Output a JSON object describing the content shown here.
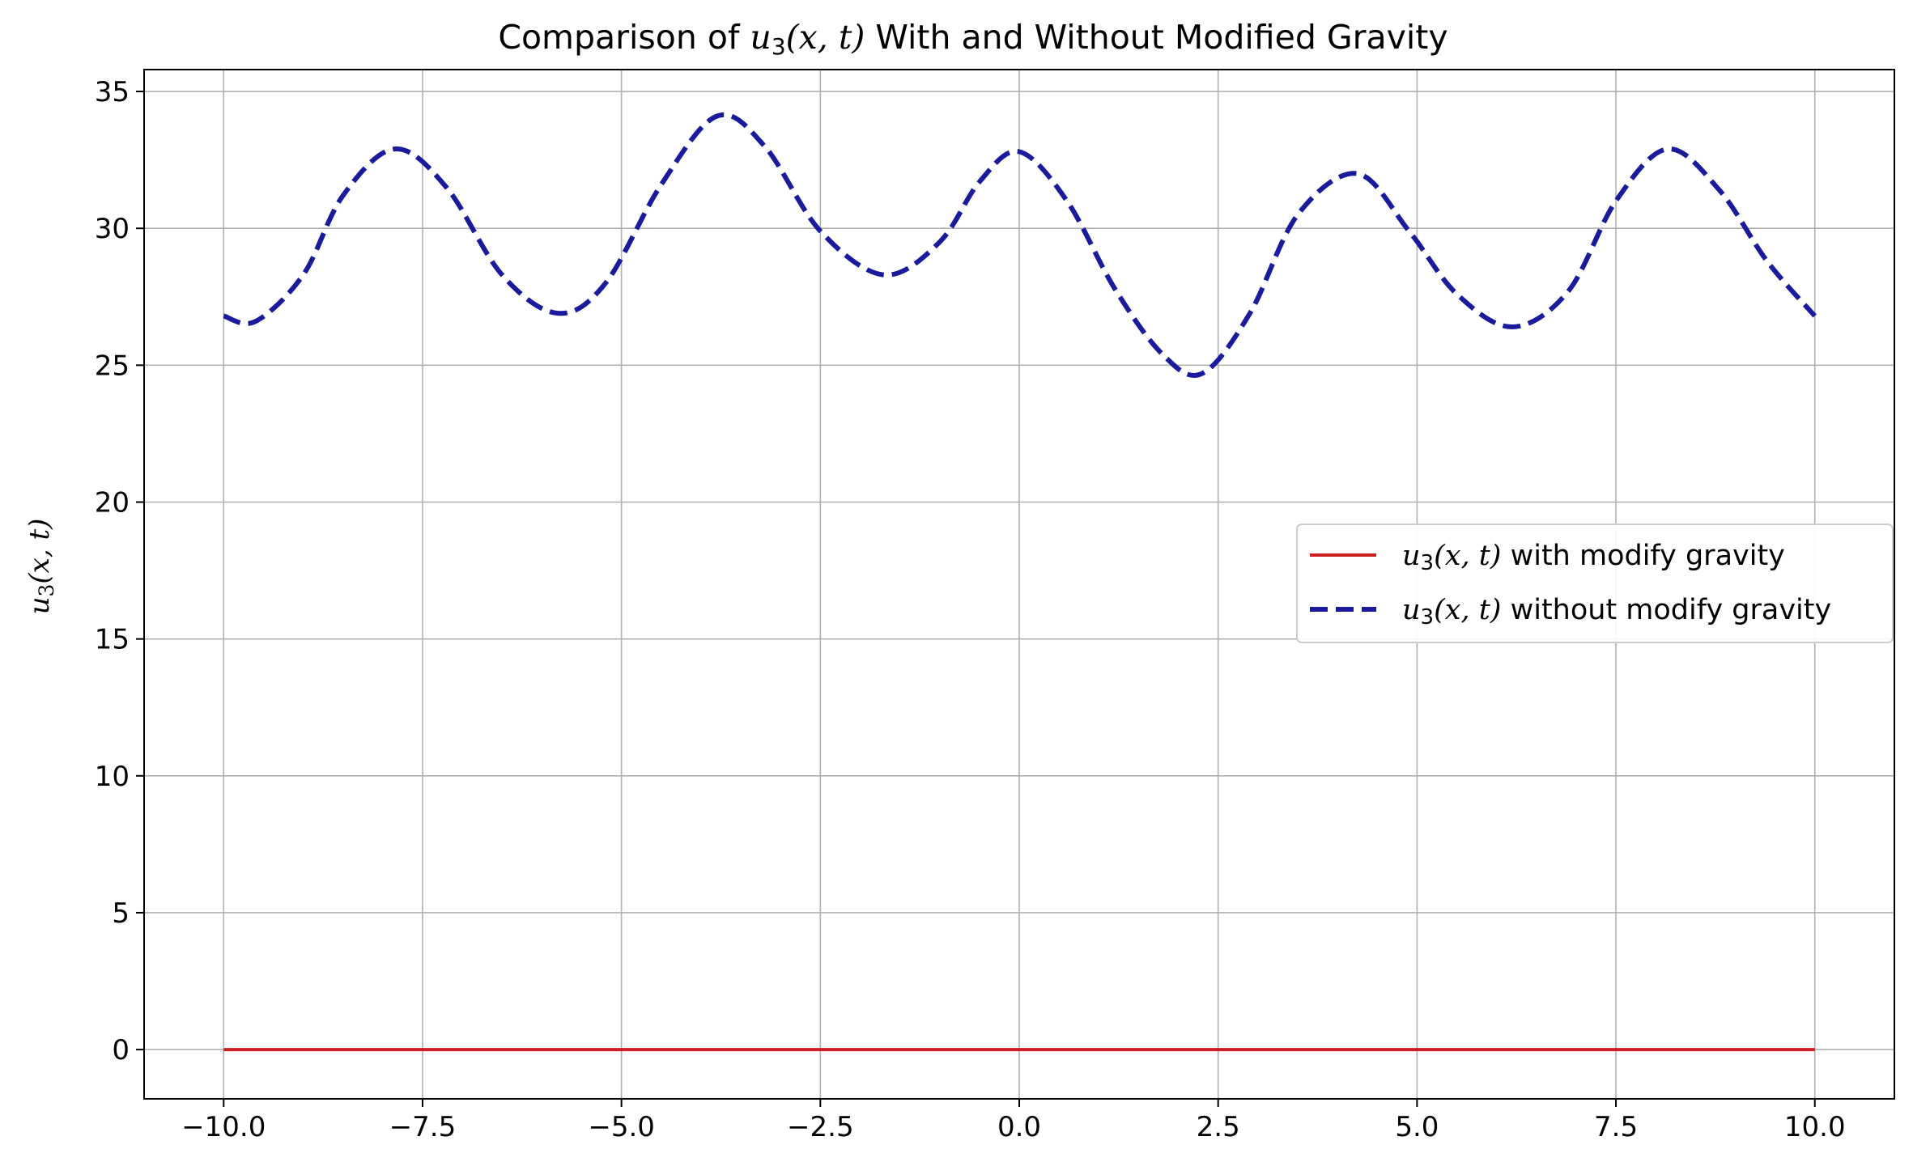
{
  "chart_data": {
    "type": "line",
    "title": {
      "prefix": "Comparison of ",
      "math": "u",
      "math_sub": "3",
      "math_args": "(x, t)",
      "suffix": " With and Without Modified Gravity"
    },
    "xlabel": "",
    "ylabel": {
      "math": "u",
      "math_sub": "3",
      "math_args": "(x, t)"
    },
    "xlim": [
      -11.0,
      11.0
    ],
    "ylim": [
      -1.8,
      35.8
    ],
    "xticks": [
      -10,
      -7.5,
      -5,
      -2.5,
      0,
      2.5,
      5,
      7.5,
      10
    ],
    "xtick_labels": [
      "−10.0",
      "−7.5",
      "−5.0",
      "−2.5",
      "0.0",
      "2.5",
      "5.0",
      "7.5",
      "10.0"
    ],
    "yticks": [
      0,
      5,
      10,
      15,
      20,
      25,
      30,
      35
    ],
    "ytick_labels": [
      "0",
      "5",
      "10",
      "15",
      "20",
      "25",
      "30",
      "35"
    ],
    "grid": true,
    "legend_position": "center-right",
    "series": [
      {
        "name": {
          "math": "u",
          "math_sub": "3",
          "math_args": "(x, t)",
          "text": " with modify gravity"
        },
        "color": "#cc1f1f",
        "style": "solid",
        "x": [
          -10,
          10
        ],
        "y": [
          0,
          0
        ]
      },
      {
        "name": {
          "math": "u",
          "math_sub": "3",
          "math_args": "(x, t)",
          "text": " without modify gravity"
        },
        "color": "#1a1a9c",
        "style": "dashed",
        "x": [
          -10.0,
          -9.6,
          -9.0,
          -8.5,
          -7.85,
          -7.2,
          -6.5,
          -5.8,
          -5.2,
          -4.5,
          -3.8,
          -3.2,
          -2.5,
          -1.7,
          -1.0,
          -0.5,
          0.0,
          0.6,
          1.2,
          1.8,
          2.3,
          2.9,
          3.5,
          4.25,
          4.9,
          5.5,
          6.2,
          6.9,
          7.5,
          8.15,
          8.8,
          9.4,
          10.0
        ],
        "y": [
          26.8,
          26.6,
          28.3,
          31.2,
          32.9,
          31.5,
          28.3,
          26.9,
          28.0,
          31.6,
          34.1,
          33.0,
          29.9,
          28.3,
          29.5,
          31.7,
          32.8,
          31.0,
          27.8,
          25.4,
          24.7,
          26.9,
          30.5,
          32.0,
          29.9,
          27.6,
          26.4,
          27.7,
          31.0,
          32.9,
          31.4,
          28.8,
          26.8
        ]
      }
    ]
  }
}
